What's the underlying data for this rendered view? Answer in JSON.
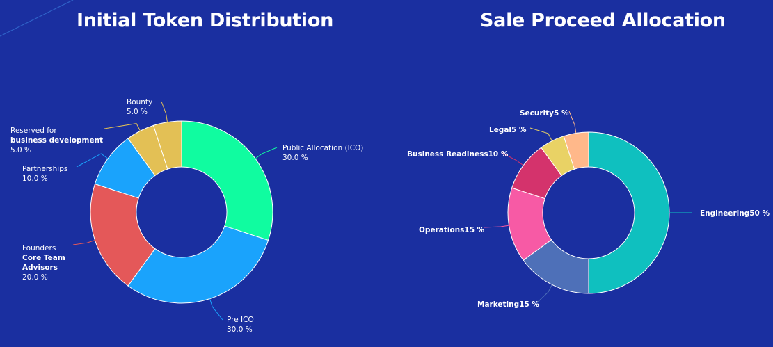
{
  "colors": {
    "background": "#1a2fa0"
  },
  "chart_data": [
    {
      "type": "pie",
      "title": "Initial Token Distribution",
      "donut": true,
      "slices": [
        {
          "name": "Public Allocation (ICO)",
          "value": 30.0,
          "value_label": "30.0 %",
          "color": "#10fca0",
          "lines": [
            {
              "text": "Public Allocation (ICO)",
              "bold": false
            }
          ]
        },
        {
          "name": "Pre ICO",
          "value": 30.0,
          "value_label": "30.0 %",
          "color": "#1aa3fc",
          "lines": [
            {
              "text": "Pre ICO",
              "bold": false
            }
          ]
        },
        {
          "name": "Founders Core Team Advisors",
          "value": 20.0,
          "value_label": "20.0 %",
          "color": "#e45859",
          "lines": [
            {
              "text": "Founders",
              "bold": false
            },
            {
              "text": "Core Team",
              "bold": true
            },
            {
              "text": "Advisors",
              "bold": true
            }
          ]
        },
        {
          "name": "Partnerships",
          "value": 10.0,
          "value_label": "10.0 %",
          "color": "#1aa3fc",
          "lines": [
            {
              "text": "Partnerships",
              "bold": false
            }
          ]
        },
        {
          "name": "Reserved for business development",
          "value": 5.0,
          "value_label": "5.0 %",
          "color": "#e3c055",
          "lines": [
            {
              "text": "Reserved for",
              "bold": false
            },
            {
              "text": "business development",
              "bold": true
            }
          ]
        },
        {
          "name": "Bounty",
          "value": 5.0,
          "value_label": "5.0 %",
          "color": "#e3c055",
          "lines": [
            {
              "text": "Bounty",
              "bold": false
            }
          ]
        }
      ]
    },
    {
      "type": "pie",
      "title": "Sale Proceed Allocation",
      "donut": true,
      "slices": [
        {
          "name": "Engineering",
          "value": 50,
          "value_label": "50 %",
          "color": "#0fc0bf",
          "lines": []
        },
        {
          "name": "Marketing",
          "value": 15,
          "value_label": "15 %",
          "color": "#4e70b8",
          "lines": []
        },
        {
          "name": "Operations",
          "value": 15,
          "value_label": "15 %",
          "color": "#f75aa5",
          "lines": []
        },
        {
          "name": "Business Readiness",
          "value": 10,
          "value_label": "10 %",
          "color": "#d4336c",
          "lines": []
        },
        {
          "name": "Legal",
          "value": 5,
          "value_label": "5 %",
          "color": "#e9d265",
          "lines": []
        },
        {
          "name": "Security",
          "value": 5,
          "value_label": "5 %",
          "color": "#ffb88a",
          "lines": []
        }
      ]
    }
  ]
}
